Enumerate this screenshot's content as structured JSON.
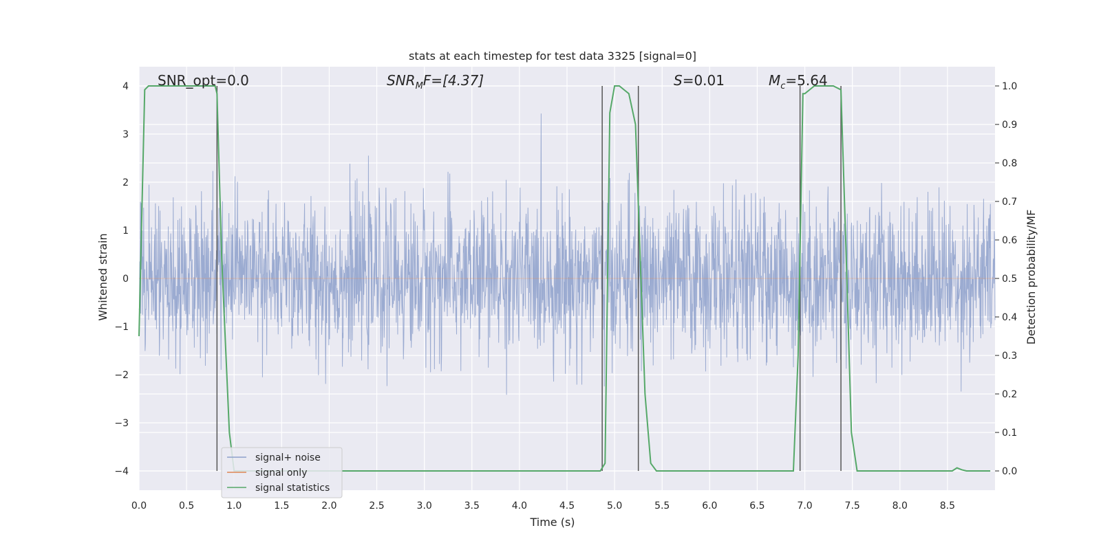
{
  "chart_data": {
    "type": "line",
    "title": "stats at each timestep for test data 3325 [signal=0]",
    "xlabel": "Time (s)",
    "ylabel_left": "Whitened strain",
    "ylabel_right": "Detection probability/MF",
    "xlim": [
      0.0,
      9.0
    ],
    "ylim_left": [
      -4.4,
      4.4
    ],
    "ylim_right": [
      -0.05,
      1.05
    ],
    "x_ticks": [
      "0.0",
      "0.5",
      "1.0",
      "1.5",
      "2.0",
      "2.5",
      "3.0",
      "3.5",
      "4.0",
      "4.5",
      "5.0",
      "5.5",
      "6.0",
      "6.5",
      "7.0",
      "7.5",
      "8.0",
      "8.5"
    ],
    "y_ticks_left": [
      "−4",
      "−3",
      "−2",
      "−1",
      "0",
      "1",
      "2",
      "3",
      "4"
    ],
    "y_ticks_right": [
      "0.0",
      "0.1",
      "0.2",
      "0.3",
      "0.4",
      "0.5",
      "0.6",
      "0.7",
      "0.8",
      "0.9",
      "1.0"
    ],
    "grid": true,
    "legend_placement": "lower-left",
    "annotations": {
      "snr_opt": "SNR_opt=0.0",
      "snr_mf_sym": "SNR",
      "snr_mf_sub": "M",
      "snr_mf_rest": "F=[4.37]",
      "s_sym": "S",
      "s_rest": "=0.01",
      "mc_sym": "M",
      "mc_sub": "c",
      "mc_rest": "=5.64"
    },
    "series": [
      {
        "name": "signal+ noise",
        "color": "#8da0cb",
        "axis": "left",
        "noise_sigma": 0.8,
        "noise_range": [
          -3.6,
          4.0
        ]
      },
      {
        "name": "signal only",
        "color": "#dd8452",
        "axis": "left",
        "values": 0
      },
      {
        "name": "signal statistics",
        "color": "#55a868",
        "axis": "right",
        "x": [
          0.0,
          0.06,
          0.1,
          0.2,
          0.3,
          0.4,
          0.5,
          0.6,
          0.7,
          0.8,
          0.82,
          0.87,
          0.95,
          1.0,
          1.5,
          2.0,
          2.5,
          3.0,
          3.5,
          4.0,
          4.5,
          4.85,
          4.9,
          4.95,
          5.0,
          5.05,
          5.1,
          5.15,
          5.22,
          5.27,
          5.32,
          5.38,
          5.44,
          5.5,
          6.0,
          6.5,
          6.88,
          6.93,
          6.98,
          7.0,
          7.05,
          7.1,
          7.2,
          7.3,
          7.38,
          7.43,
          7.49,
          7.55,
          8.0,
          8.5,
          8.55,
          8.6,
          8.65,
          8.7,
          8.8,
          8.95
        ],
        "values": [
          0.35,
          0.99,
          1.0,
          1.0,
          1.0,
          1.0,
          1.0,
          1.0,
          1.0,
          1.0,
          0.98,
          0.55,
          0.1,
          0.0,
          0.0,
          0.0,
          0.0,
          0.0,
          0.0,
          0.0,
          0.0,
          0.0,
          0.02,
          0.93,
          1.0,
          1.0,
          0.99,
          0.98,
          0.9,
          0.55,
          0.2,
          0.02,
          0.0,
          0.0,
          0.0,
          0.0,
          0.0,
          0.3,
          0.98,
          0.98,
          0.99,
          1.0,
          1.0,
          1.0,
          0.99,
          0.6,
          0.1,
          0.0,
          0.0,
          0.0,
          0.0,
          0.008,
          0.003,
          0.0,
          0.0,
          0.0
        ]
      },
      {
        "name": "",
        "color": "#555555",
        "axis": "left",
        "type": "vlines",
        "x": [
          0.82,
          4.87,
          5.25,
          6.95,
          7.38
        ]
      }
    ]
  }
}
